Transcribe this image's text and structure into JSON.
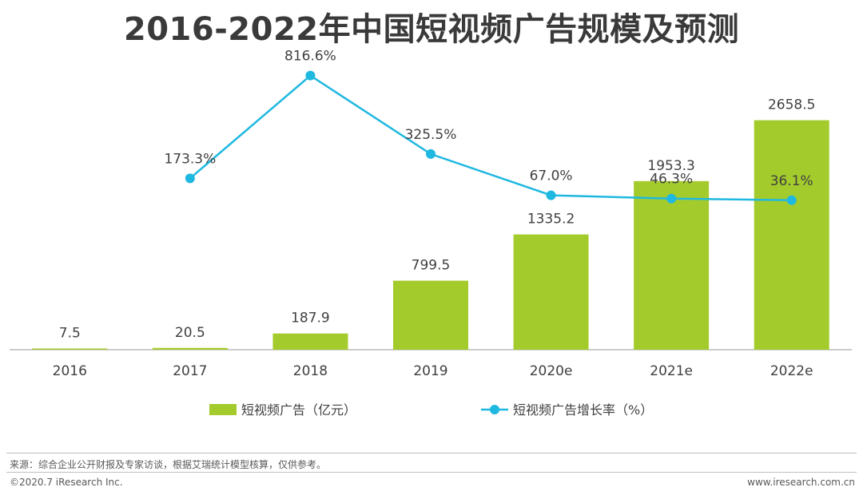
{
  "header": {
    "title": "2016-2022年中国短视频广告规模及预测"
  },
  "chart_data": {
    "type": "bar",
    "title": "2016-2022年中国短视频广告规模及预测",
    "categories": [
      "2016",
      "2017",
      "2018",
      "2019",
      "2020e",
      "2021e",
      "2022e"
    ],
    "series": [
      {
        "name": "短视频广告（亿元）",
        "type": "bar",
        "values": [
          7.5,
          20.5,
          187.9,
          799.5,
          1335.2,
          1953.3,
          2658.5
        ],
        "labels": [
          "7.5",
          "20.5",
          "187.9",
          "799.5",
          "1335.2",
          "1953.3",
          "2658.5"
        ],
        "color": "#a4cb2c"
      },
      {
        "name": "短视频广告增长率（%）",
        "type": "line",
        "values": [
          null,
          173.3,
          816.6,
          325.5,
          67.0,
          46.3,
          36.1
        ],
        "labels": [
          "",
          "173.3%",
          "816.6%",
          "325.5%",
          "67.0%",
          "46.3%",
          "36.1%"
        ],
        "color": "#1fb8e0"
      }
    ],
    "xlabel": "",
    "ylabel": "",
    "ylim_bar": [
      0,
      3700
    ],
    "ylim_line": [
      -900,
      1100
    ],
    "grid": false,
    "legend": "bottom"
  },
  "footer": {
    "source": "来源：综合企业公开财报及专家访谈，根据艾瑞统计模型核算，仅供参考。",
    "copyright": "©2020.7 iResearch Inc.",
    "website": "www.iresearch.com.cn"
  }
}
